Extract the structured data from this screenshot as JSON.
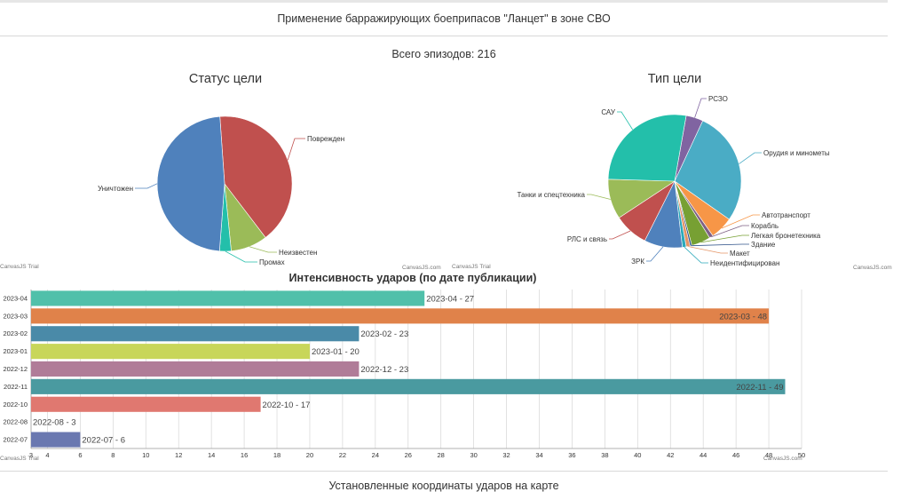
{
  "page": {
    "title": "Применение барражирующих боеприпасов \"Ланцет\" в зоне СВО",
    "episodes_label": "Всего эпизодов: 216",
    "footer_title": "Установленные координаты ударов на карте",
    "credit_trial": "CanvasJS Trial",
    "credit_com": "CanvasJS.com"
  },
  "chart_data": [
    {
      "type": "pie",
      "title": "Статус цели",
      "slices": [
        {
          "label": "Поврежден",
          "value": 88,
          "color": "#c0504e"
        },
        {
          "label": "Неизвестен",
          "value": 19,
          "color": "#9bbb58"
        },
        {
          "label": "Промах",
          "value": 6,
          "color": "#23bfaa"
        },
        {
          "label": "Уничтожен",
          "value": 103,
          "color": "#4f81bc"
        }
      ]
    },
    {
      "type": "pie",
      "title": "Тип цели",
      "slices": [
        {
          "label": "РСЗО",
          "value": 9,
          "color": "#8064a1"
        },
        {
          "label": "Орудия и минометы",
          "value": 60,
          "color": "#4aacc5"
        },
        {
          "label": "Автотранспорт",
          "value": 12,
          "color": "#f79647"
        },
        {
          "label": "Корабль",
          "value": 2,
          "color": "#7f6084"
        },
        {
          "label": "Легкая бронетехника",
          "value": 10,
          "color": "#77a033"
        },
        {
          "label": "Здание",
          "value": 1,
          "color": "#33558b"
        },
        {
          "label": "Макет",
          "value": 2,
          "color": "#e59566"
        },
        {
          "label": "Неидентифицирован",
          "value": 2,
          "color": "#2ba9ba"
        },
        {
          "label": "ЗРК",
          "value": 20,
          "color": "#4f81bc"
        },
        {
          "label": "РЛС и связь",
          "value": 18,
          "color": "#c0504e"
        },
        {
          "label": "Танки и спецтехника",
          "value": 21,
          "color": "#9bbb58"
        },
        {
          "label": "САУ",
          "value": 59,
          "color": "#23bfaa"
        }
      ]
    },
    {
      "type": "bar",
      "orientation": "horizontal",
      "title": "Интенсивность ударов (по дате публикации)",
      "xlim": [
        3,
        50
      ],
      "ticks": [
        3,
        4,
        6,
        8,
        10,
        12,
        14,
        16,
        18,
        20,
        22,
        24,
        26,
        28,
        30,
        32,
        34,
        36,
        38,
        40,
        42,
        44,
        46,
        48,
        50
      ],
      "grid": true,
      "bars": [
        {
          "category": "2023-04",
          "value": 27,
          "label": "2023-04 - 27",
          "color": "#50c0aa"
        },
        {
          "category": "2023-03",
          "value": 48,
          "label": "2023-03 - 48",
          "color": "#e0824a"
        },
        {
          "category": "2023-02",
          "value": 23,
          "label": "2023-02 - 23",
          "color": "#4a8aa8"
        },
        {
          "category": "2023-01",
          "value": 20,
          "label": "2023-01 - 20",
          "color": "#c8d65a"
        },
        {
          "category": "2022-12",
          "value": 23,
          "label": "2022-12 - 23",
          "color": "#b07c98"
        },
        {
          "category": "2022-11",
          "value": 49,
          "label": "2022-11 - 49",
          "color": "#4a9aa0"
        },
        {
          "category": "2022-10",
          "value": 17,
          "label": "2022-10 - 17",
          "color": "#e07870"
        },
        {
          "category": "2022-08",
          "value": 3,
          "label": "2022-08 - 3",
          "color": "#50d090"
        },
        {
          "category": "2022-07",
          "value": 6,
          "label": "2022-07 - 6",
          "color": "#6a78b0"
        }
      ]
    }
  ]
}
